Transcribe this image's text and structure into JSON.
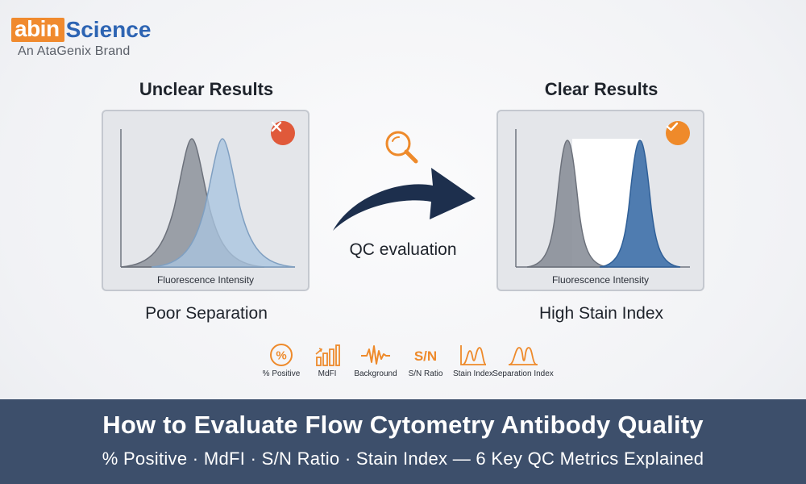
{
  "brand": {
    "abin": "abin",
    "science": "Science",
    "tagline": "An AtaGenix Brand",
    "orange": "#f08a2e",
    "blue": "#2d64b3"
  },
  "left_panel": {
    "title": "Unclear Results",
    "axis_label": "Fluorescence Intensity",
    "caption": "Poor Separation",
    "badge_icon": "x-circle-icon",
    "badge_color": "#e0593a"
  },
  "middle": {
    "icon": "magnifier-icon",
    "arrow_icon": "curved-arrow-icon",
    "label": "QC evaluation"
  },
  "right_panel": {
    "title": "Clear Results",
    "axis_label": "Fluorescence Intensity",
    "caption": "High Stain Index",
    "badge_icon": "check-circle-icon",
    "badge_color": "#ef8a2a"
  },
  "metrics": [
    {
      "icon": "percent-icon",
      "label": "% Positive"
    },
    {
      "icon": "bar-chart-icon",
      "label": "MdFI"
    },
    {
      "icon": "waveform-icon",
      "label": "Background"
    },
    {
      "icon": "sn-text-icon",
      "label": "S/N Ratio",
      "glyph": "S/N"
    },
    {
      "icon": "stain-index-icon",
      "label": "Stain Index"
    },
    {
      "icon": "separation-index-icon",
      "label": "Separation Index"
    }
  ],
  "footer": {
    "title": "How to Evaluate Flow Cytometry Antibody Quality",
    "subtitle": "% Positive · MdFI · S/N Ratio · Stain Index — 6 Key QC Metrics Explained",
    "background": "#3d4f6b"
  }
}
